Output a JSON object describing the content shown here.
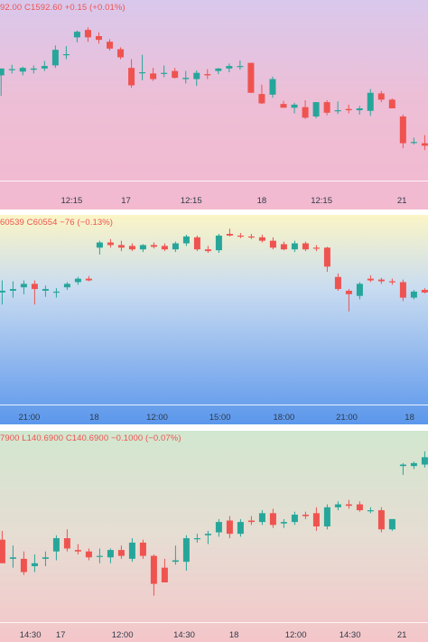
{
  "colors": {
    "up": "#26a69a",
    "down": "#ef5350"
  },
  "charts": [
    {
      "legend": "92.00 C1592.60 +0.15 (+0.01%)",
      "x_ticks": [
        {
          "label": "12:15",
          "bar": 6.5
        },
        {
          "label": "17",
          "bar": 11.5
        },
        {
          "label": "12:15",
          "bar": 17.5
        },
        {
          "label": "18",
          "bar": 24
        },
        {
          "label": "12:15",
          "bar": 29.5
        },
        {
          "label": "21",
          "bar": 36.9
        }
      ]
    },
    {
      "legend": "60539 C60554 −76 (−0.13%)",
      "x_ticks": [
        {
          "label": "21:00",
          "bar": 2.5
        },
        {
          "label": "18",
          "bar": 8.5
        },
        {
          "label": "12:00",
          "bar": 14.3
        },
        {
          "label": "15:00",
          "bar": 20.1
        },
        {
          "label": "18:00",
          "bar": 26
        },
        {
          "label": "21:00",
          "bar": 31.8
        },
        {
          "label": "18",
          "bar": 37.6
        }
      ]
    },
    {
      "legend": "7900 L140.6900 C140.6900 −0.1000 (−0.07%)",
      "x_ticks": [
        {
          "label": "14:30",
          "bar": 2.6
        },
        {
          "label": "17",
          "bar": 5.4
        },
        {
          "label": "12:00",
          "bar": 11.1
        },
        {
          "label": "14:30",
          "bar": 16.8
        },
        {
          "label": "18",
          "bar": 21.4
        },
        {
          "label": "12:00",
          "bar": 27.1
        },
        {
          "label": "14:30",
          "bar": 32.1
        },
        {
          "label": "21",
          "bar": 36.9
        }
      ]
    }
  ],
  "chart_data": [
    {
      "type": "candlestick",
      "title": "",
      "ylim": [
        1574,
        1603
      ],
      "x_range": [
        -0.1,
        39.3
      ],
      "grid": false,
      "candles": [
        {
          "o": 1590.9,
          "h": 1592.0,
          "l": 1587.6,
          "c": 1592.0
        },
        {
          "o": 1591.9,
          "h": 1592.6,
          "l": 1591.2,
          "c": 1591.9
        },
        {
          "o": 1591.5,
          "h": 1592.3,
          "l": 1590.9,
          "c": 1592.1
        },
        {
          "o": 1591.8,
          "h": 1592.5,
          "l": 1591.2,
          "c": 1592.0
        },
        {
          "o": 1592.0,
          "h": 1593.2,
          "l": 1591.6,
          "c": 1592.4
        },
        {
          "o": 1592.5,
          "h": 1595.7,
          "l": 1592.1,
          "c": 1595.0
        },
        {
          "o": 1594.3,
          "h": 1595.6,
          "l": 1593.5,
          "c": 1594.3
        },
        {
          "o": 1597.0,
          "h": 1598.1,
          "l": 1596.2,
          "c": 1597.9
        },
        {
          "o": 1598.2,
          "h": 1598.6,
          "l": 1596.3,
          "c": 1597.0
        },
        {
          "o": 1597.2,
          "h": 1597.8,
          "l": 1596.0,
          "c": 1596.6
        },
        {
          "o": 1596.3,
          "h": 1596.7,
          "l": 1594.9,
          "c": 1595.2
        },
        {
          "o": 1595.1,
          "h": 1595.4,
          "l": 1593.5,
          "c": 1593.8
        },
        {
          "o": 1592.1,
          "h": 1593.5,
          "l": 1588.9,
          "c": 1589.3
        },
        {
          "o": 1591.3,
          "h": 1594.2,
          "l": 1590.1,
          "c": 1591.4
        },
        {
          "o": 1591.2,
          "h": 1592.1,
          "l": 1590.0,
          "c": 1590.3
        },
        {
          "o": 1591.2,
          "h": 1592.5,
          "l": 1590.6,
          "c": 1591.3
        },
        {
          "o": 1591.6,
          "h": 1592.1,
          "l": 1590.4,
          "c": 1590.5
        },
        {
          "o": 1590.3,
          "h": 1591.6,
          "l": 1589.6,
          "c": 1590.5
        },
        {
          "o": 1590.3,
          "h": 1591.7,
          "l": 1589.2,
          "c": 1591.3
        },
        {
          "o": 1591.1,
          "h": 1591.9,
          "l": 1590.3,
          "c": 1590.9
        },
        {
          "o": 1591.6,
          "h": 1592.1,
          "l": 1591.1,
          "c": 1592.0
        },
        {
          "o": 1592.0,
          "h": 1592.8,
          "l": 1591.4,
          "c": 1592.4
        },
        {
          "o": 1592.4,
          "h": 1593.3,
          "l": 1591.8,
          "c": 1592.4
        },
        {
          "o": 1592.9,
          "h": 1592.9,
          "l": 1588.1,
          "c": 1588.1
        },
        {
          "o": 1587.9,
          "h": 1589.4,
          "l": 1586.3,
          "c": 1586.4
        },
        {
          "o": 1587.8,
          "h": 1590.7,
          "l": 1587.3,
          "c": 1590.3
        },
        {
          "o": 1586.3,
          "h": 1586.8,
          "l": 1585.7,
          "c": 1585.7
        },
        {
          "o": 1585.7,
          "h": 1586.5,
          "l": 1584.8,
          "c": 1586.2
        },
        {
          "o": 1585.8,
          "h": 1586.9,
          "l": 1583.9,
          "c": 1584.1
        },
        {
          "o": 1584.3,
          "h": 1586.5,
          "l": 1584.0,
          "c": 1586.6
        },
        {
          "o": 1586.6,
          "h": 1586.9,
          "l": 1584.5,
          "c": 1584.9
        },
        {
          "o": 1585.3,
          "h": 1586.7,
          "l": 1584.7,
          "c": 1585.3
        },
        {
          "o": 1585.5,
          "h": 1586.2,
          "l": 1584.8,
          "c": 1585.3
        },
        {
          "o": 1585.3,
          "h": 1586.0,
          "l": 1584.6,
          "c": 1585.6
        },
        {
          "o": 1585.2,
          "h": 1588.7,
          "l": 1584.4,
          "c": 1588.1
        },
        {
          "o": 1588.0,
          "h": 1588.4,
          "l": 1586.6,
          "c": 1587.0
        },
        {
          "o": 1587.0,
          "h": 1587.2,
          "l": 1585.6,
          "c": 1585.6
        },
        {
          "o": 1584.3,
          "h": 1584.6,
          "l": 1579.2,
          "c": 1580.0
        },
        {
          "o": 1580.2,
          "h": 1580.9,
          "l": 1579.8,
          "c": 1580.2
        },
        {
          "o": 1580.0,
          "h": 1581.3,
          "l": 1578.9,
          "c": 1579.6
        }
      ]
    },
    {
      "type": "candlestick",
      "title": "",
      "ylim": [
        60280,
        61380
      ],
      "x_range": [
        -0.2,
        39.3
      ],
      "grid": false,
      "candles": [
        {
          "o": 60930,
          "h": 61000,
          "l": 60860,
          "c": 60940
        },
        {
          "o": 60940,
          "h": 60995,
          "l": 60900,
          "c": 60950
        },
        {
          "o": 60960,
          "h": 61000,
          "l": 60920,
          "c": 60980
        },
        {
          "o": 60980,
          "h": 61000,
          "l": 60860,
          "c": 60950
        },
        {
          "o": 60940,
          "h": 60970,
          "l": 60905,
          "c": 60950
        },
        {
          "o": 60930,
          "h": 60955,
          "l": 60900,
          "c": 60935
        },
        {
          "o": 60960,
          "h": 60990,
          "l": 60945,
          "c": 60980
        },
        {
          "o": 60990,
          "h": 61020,
          "l": 60975,
          "c": 61010
        },
        {
          "o": 61010,
          "h": 61025,
          "l": 60995,
          "c": 61000
        },
        {
          "o": 61190,
          "h": 61230,
          "l": 61150,
          "c": 61220
        },
        {
          "o": 61220,
          "h": 61240,
          "l": 61190,
          "c": 61205
        },
        {
          "o": 61205,
          "h": 61230,
          "l": 61170,
          "c": 61190
        },
        {
          "o": 61200,
          "h": 61215,
          "l": 61170,
          "c": 61180
        },
        {
          "o": 61180,
          "h": 61210,
          "l": 61165,
          "c": 61205
        },
        {
          "o": 61205,
          "h": 61220,
          "l": 61185,
          "c": 61195
        },
        {
          "o": 61200,
          "h": 61215,
          "l": 61170,
          "c": 61180
        },
        {
          "o": 61180,
          "h": 61225,
          "l": 61165,
          "c": 61215
        },
        {
          "o": 61215,
          "h": 61265,
          "l": 61200,
          "c": 61255
        },
        {
          "o": 61250,
          "h": 61260,
          "l": 61170,
          "c": 61180
        },
        {
          "o": 61180,
          "h": 61200,
          "l": 61160,
          "c": 61170
        },
        {
          "o": 61175,
          "h": 61270,
          "l": 61160,
          "c": 61260
        },
        {
          "o": 61270,
          "h": 61300,
          "l": 61255,
          "c": 61260
        },
        {
          "o": 61260,
          "h": 61275,
          "l": 61245,
          "c": 61255
        },
        {
          "o": 61255,
          "h": 61270,
          "l": 61240,
          "c": 61250
        },
        {
          "o": 61250,
          "h": 61265,
          "l": 61220,
          "c": 61230
        },
        {
          "o": 61230,
          "h": 61250,
          "l": 61180,
          "c": 61190
        },
        {
          "o": 61210,
          "h": 61225,
          "l": 61175,
          "c": 61180
        },
        {
          "o": 61180,
          "h": 61230,
          "l": 61165,
          "c": 61215
        },
        {
          "o": 61215,
          "h": 61225,
          "l": 61170,
          "c": 61180
        },
        {
          "o": 61190,
          "h": 61205,
          "l": 61170,
          "c": 61185
        },
        {
          "o": 61190,
          "h": 61195,
          "l": 61050,
          "c": 61080
        },
        {
          "o": 61020,
          "h": 61040,
          "l": 60940,
          "c": 60950
        },
        {
          "o": 60940,
          "h": 60950,
          "l": 60820,
          "c": 60920
        },
        {
          "o": 60910,
          "h": 60990,
          "l": 60890,
          "c": 60980
        },
        {
          "o": 61010,
          "h": 61030,
          "l": 60990,
          "c": 61000
        },
        {
          "o": 61005,
          "h": 61015,
          "l": 60980,
          "c": 60995
        },
        {
          "o": 60995,
          "h": 61010,
          "l": 60975,
          "c": 60990
        },
        {
          "o": 60990,
          "h": 61005,
          "l": 60880,
          "c": 60900
        },
        {
          "o": 60900,
          "h": 60945,
          "l": 60890,
          "c": 60935
        },
        {
          "o": 60945,
          "h": 60955,
          "l": 60925,
          "c": 60930
        }
      ]
    },
    {
      "type": "candlestick",
      "title": "",
      "ylim": [
        140.1,
        141.4
      ],
      "x_range": [
        -0.2,
        39.3
      ],
      "grid": false,
      "candles": [
        {
          "o": 140.66,
          "h": 140.72,
          "l": 140.5,
          "c": 140.5
        },
        {
          "o": 140.53,
          "h": 140.62,
          "l": 140.47,
          "c": 140.54
        },
        {
          "o": 140.53,
          "h": 140.58,
          "l": 140.42,
          "c": 140.44
        },
        {
          "o": 140.48,
          "h": 140.56,
          "l": 140.44,
          "c": 140.5
        },
        {
          "o": 140.53,
          "h": 140.58,
          "l": 140.48,
          "c": 140.54
        },
        {
          "o": 140.58,
          "h": 140.69,
          "l": 140.52,
          "c": 140.67
        },
        {
          "o": 140.67,
          "h": 140.73,
          "l": 140.58,
          "c": 140.6
        },
        {
          "o": 140.59,
          "h": 140.63,
          "l": 140.56,
          "c": 140.58
        },
        {
          "o": 140.58,
          "h": 140.6,
          "l": 140.52,
          "c": 140.54
        },
        {
          "o": 140.55,
          "h": 140.6,
          "l": 140.5,
          "c": 140.55
        },
        {
          "o": 140.54,
          "h": 140.6,
          "l": 140.5,
          "c": 140.59
        },
        {
          "o": 140.59,
          "h": 140.62,
          "l": 140.53,
          "c": 140.55
        },
        {
          "o": 140.53,
          "h": 140.67,
          "l": 140.51,
          "c": 140.64
        },
        {
          "o": 140.64,
          "h": 140.66,
          "l": 140.53,
          "c": 140.55
        },
        {
          "o": 140.55,
          "h": 140.56,
          "l": 140.28,
          "c": 140.36
        },
        {
          "o": 140.47,
          "h": 140.53,
          "l": 140.37,
          "c": 140.37
        },
        {
          "o": 140.51,
          "h": 140.62,
          "l": 140.49,
          "c": 140.52
        },
        {
          "o": 140.51,
          "h": 140.69,
          "l": 140.45,
          "c": 140.67
        },
        {
          "o": 140.67,
          "h": 140.7,
          "l": 140.64,
          "c": 140.67
        },
        {
          "o": 140.69,
          "h": 140.72,
          "l": 140.63,
          "c": 140.7
        },
        {
          "o": 140.71,
          "h": 140.8,
          "l": 140.68,
          "c": 140.78
        },
        {
          "o": 140.79,
          "h": 140.82,
          "l": 140.67,
          "c": 140.7
        },
        {
          "o": 140.7,
          "h": 140.8,
          "l": 140.68,
          "c": 140.78
        },
        {
          "o": 140.79,
          "h": 140.82,
          "l": 140.76,
          "c": 140.78
        },
        {
          "o": 140.78,
          "h": 140.86,
          "l": 140.76,
          "c": 140.84
        },
        {
          "o": 140.84,
          "h": 140.87,
          "l": 140.74,
          "c": 140.76
        },
        {
          "o": 140.77,
          "h": 140.8,
          "l": 140.74,
          "c": 140.78
        },
        {
          "o": 140.78,
          "h": 140.85,
          "l": 140.76,
          "c": 140.83
        },
        {
          "o": 140.83,
          "h": 140.85,
          "l": 140.8,
          "c": 140.82
        },
        {
          "o": 140.84,
          "h": 140.88,
          "l": 140.72,
          "c": 140.75
        },
        {
          "o": 140.75,
          "h": 140.9,
          "l": 140.73,
          "c": 140.88
        },
        {
          "o": 140.88,
          "h": 140.92,
          "l": 140.86,
          "c": 140.9
        },
        {
          "o": 140.9,
          "h": 140.93,
          "l": 140.87,
          "c": 140.89
        },
        {
          "o": 140.9,
          "h": 140.92,
          "l": 140.85,
          "c": 140.86
        },
        {
          "o": 140.86,
          "h": 140.88,
          "l": 140.84,
          "c": 140.86
        },
        {
          "o": 140.86,
          "h": 140.88,
          "l": 140.71,
          "c": 140.73
        },
        {
          "o": 140.73,
          "h": 140.8,
          "l": 140.72,
          "c": 140.8
        },
        {
          "o": 141.16,
          "h": 141.18,
          "l": 141.1,
          "c": 141.17
        },
        {
          "o": 141.16,
          "h": 141.19,
          "l": 141.14,
          "c": 141.18
        },
        {
          "o": 141.17,
          "h": 141.26,
          "l": 141.15,
          "c": 141.22
        }
      ]
    }
  ]
}
